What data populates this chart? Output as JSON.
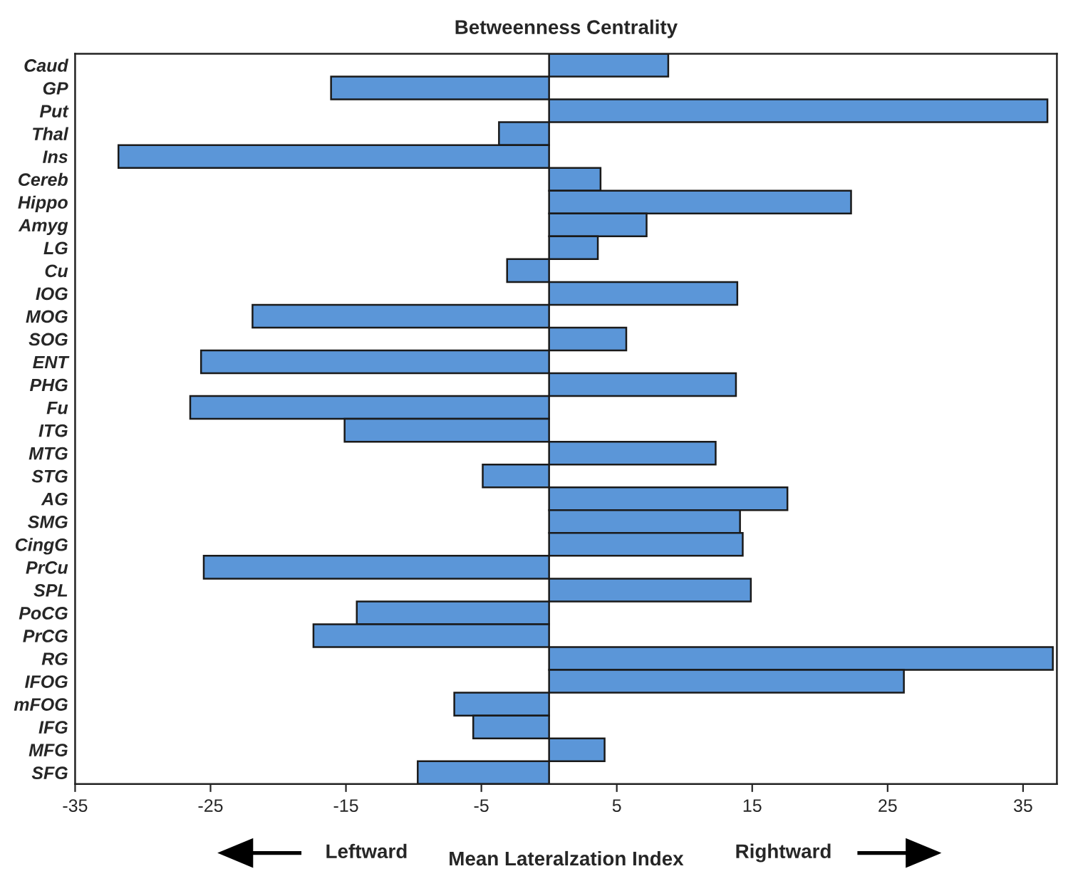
{
  "chart_data": {
    "type": "bar",
    "orientation": "horizontal",
    "title": "Betweenness Centrality",
    "xlabel": "Mean Lateralzation Index",
    "annotations": [
      "Leftward",
      "Rightward"
    ],
    "categories": [
      "Caud",
      "GP",
      "Put",
      "Thal",
      "Ins",
      "Cereb",
      "Hippo",
      "Amyg",
      "LG",
      "Cu",
      "IOG",
      "MOG",
      "SOG",
      "ENT",
      "PHG",
      "Fu",
      "ITG",
      "MTG",
      "STG",
      "AG",
      "SMG",
      "CingG",
      "PrCu",
      "SPL",
      "PoCG",
      "PrCG",
      "RG",
      "IFOG",
      "mFOG",
      "IFG",
      "MFG",
      "SFG"
    ],
    "values": [
      8.8,
      -16.1,
      36.8,
      -3.7,
      -31.8,
      3.8,
      22.3,
      7.2,
      3.6,
      -3.1,
      13.9,
      -21.9,
      5.7,
      -25.7,
      13.8,
      -26.5,
      -15.1,
      12.3,
      -4.9,
      17.6,
      14.1,
      14.3,
      -25.5,
      14.9,
      -14.2,
      -17.4,
      37.2,
      26.2,
      -7.0,
      -5.6,
      4.1,
      -9.7
    ],
    "color": "#5b96d8",
    "xlim": [
      -35,
      37.5
    ],
    "xticks": [
      -35,
      -25,
      -15,
      -5,
      5,
      15,
      25,
      35
    ],
    "grid": false,
    "legend": false
  }
}
